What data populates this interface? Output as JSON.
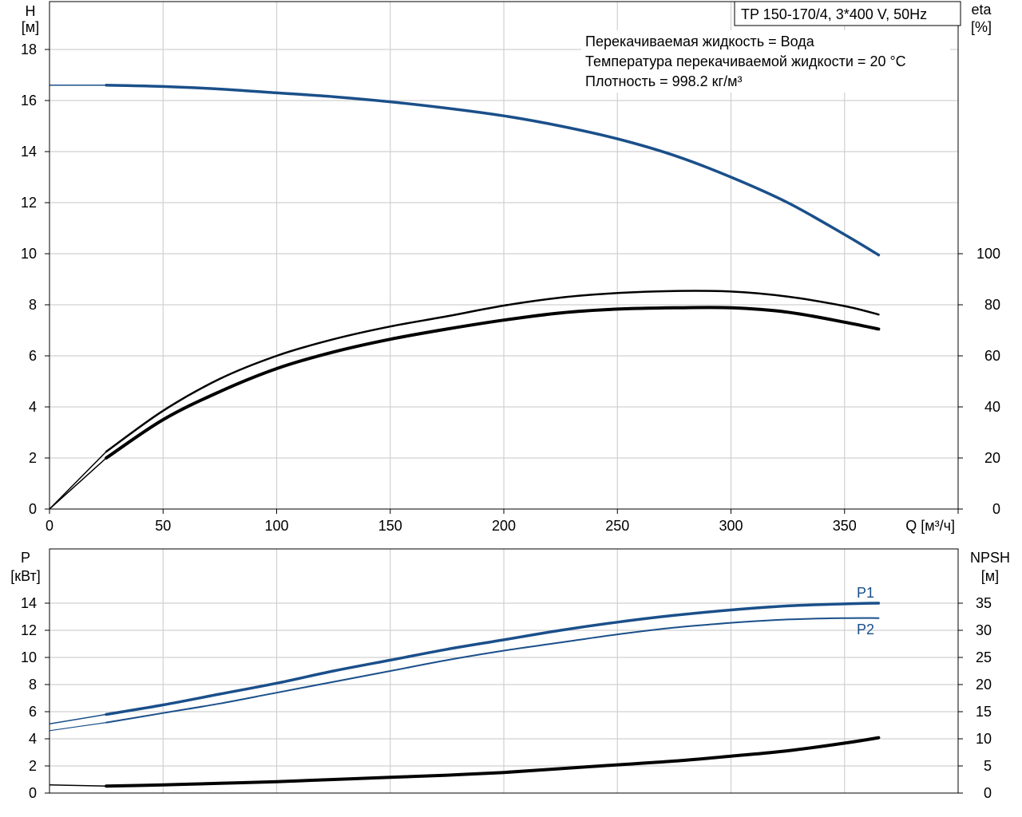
{
  "chart_data": [
    {
      "type": "line",
      "title": "TP 150-170/4, 3*400 V, 50Hz",
      "annotations": [
        "Перекачиваемая жидкость = Вода",
        "Температура перекачиваемой жидкости = 20 °C",
        "Плотность = 998.2 кг/м³"
      ],
      "xlabel": "Q [м³/ч]",
      "ylabel": "H",
      "ylabel_unit": "[м]",
      "y2label": "eta",
      "y2label_unit": "[%]",
      "xlim": [
        0,
        400
      ],
      "ylim": [
        0,
        19
      ],
      "y2lim": [
        0,
        100
      ],
      "x_ticks": [
        "0",
        "50",
        "100",
        "150",
        "200",
        "250",
        "300",
        "350"
      ],
      "y_ticks": [
        "0",
        "2",
        "4",
        "6",
        "8",
        "10",
        "12",
        "14",
        "16",
        "18"
      ],
      "y2_ticks": [
        "0",
        "20",
        "40",
        "60",
        "80",
        "100"
      ],
      "grid": true,
      "series": [
        {
          "axis": "y",
          "color": "#1a4f8a",
          "x": [
            0,
            25,
            50,
            75,
            100,
            125,
            150,
            175,
            200,
            225,
            250,
            275,
            300,
            325,
            350,
            365
          ],
          "values": [
            16.6,
            16.6,
            16.55,
            16.45,
            16.3,
            16.15,
            15.95,
            15.7,
            15.4,
            15.0,
            14.5,
            13.85,
            13.0,
            12.0,
            10.75,
            9.95
          ]
        },
        {
          "axis": "y2",
          "color": "#000000",
          "x": [
            0,
            25,
            50,
            75,
            100,
            125,
            150,
            175,
            200,
            225,
            250,
            275,
            300,
            325,
            350,
            365
          ],
          "values": [
            0,
            22.5,
            38.5,
            51,
            60,
            66.5,
            71.5,
            75.5,
            79.7,
            82.8,
            84.6,
            85.4,
            85.2,
            83.2,
            79.5,
            76.2
          ]
        },
        {
          "axis": "y2",
          "color": "#000000",
          "x": [
            0,
            25,
            50,
            75,
            100,
            125,
            150,
            175,
            200,
            225,
            250,
            275,
            300,
            325,
            350,
            365
          ],
          "values": [
            0,
            20,
            35,
            46,
            55,
            61.5,
            66.5,
            70.5,
            74,
            76.8,
            78.3,
            78.8,
            78.8,
            77.1,
            73.2,
            70.5
          ]
        }
      ]
    },
    {
      "type": "line",
      "xlim": [
        0,
        400
      ],
      "ylabel": "P",
      "ylabel_unit": "[кВт]",
      "y2label": "NPSH",
      "y2label_unit": "[м]",
      "ylim": [
        0,
        16
      ],
      "y2lim": [
        0,
        40
      ],
      "y_ticks": [
        "0",
        "2",
        "4",
        "6",
        "8",
        "10",
        "12",
        "14"
      ],
      "y2_ticks": [
        "0",
        "5",
        "10",
        "15",
        "20",
        "25",
        "30",
        "35"
      ],
      "grid": true,
      "series": [
        {
          "name": "P1",
          "axis": "y",
          "color": "#1a4f8a",
          "x": [
            0,
            25,
            50,
            75,
            100,
            125,
            150,
            175,
            200,
            225,
            250,
            275,
            300,
            325,
            350,
            365
          ],
          "values": [
            5.1,
            5.8,
            6.5,
            7.3,
            8.1,
            9.0,
            9.8,
            10.6,
            11.3,
            12.0,
            12.6,
            13.1,
            13.5,
            13.8,
            13.95,
            14.0
          ]
        },
        {
          "name": "P2",
          "axis": "y",
          "color": "#1a4f8a",
          "x": [
            0,
            25,
            50,
            75,
            100,
            125,
            150,
            175,
            200,
            225,
            250,
            275,
            300,
            325,
            350,
            365
          ],
          "values": [
            4.6,
            5.2,
            5.9,
            6.6,
            7.4,
            8.2,
            9.0,
            9.8,
            10.5,
            11.1,
            11.7,
            12.2,
            12.55,
            12.8,
            12.9,
            12.9
          ]
        },
        {
          "name": "NPSH",
          "axis": "y2",
          "color": "#000000",
          "x": [
            0,
            25,
            50,
            75,
            100,
            125,
            150,
            175,
            200,
            225,
            250,
            275,
            300,
            325,
            350,
            365
          ],
          "values": [
            1.5,
            1.3,
            1.5,
            1.8,
            2.1,
            2.5,
            2.9,
            3.3,
            3.8,
            4.5,
            5.2,
            5.9,
            6.8,
            7.8,
            9.2,
            10.2
          ]
        }
      ]
    }
  ]
}
